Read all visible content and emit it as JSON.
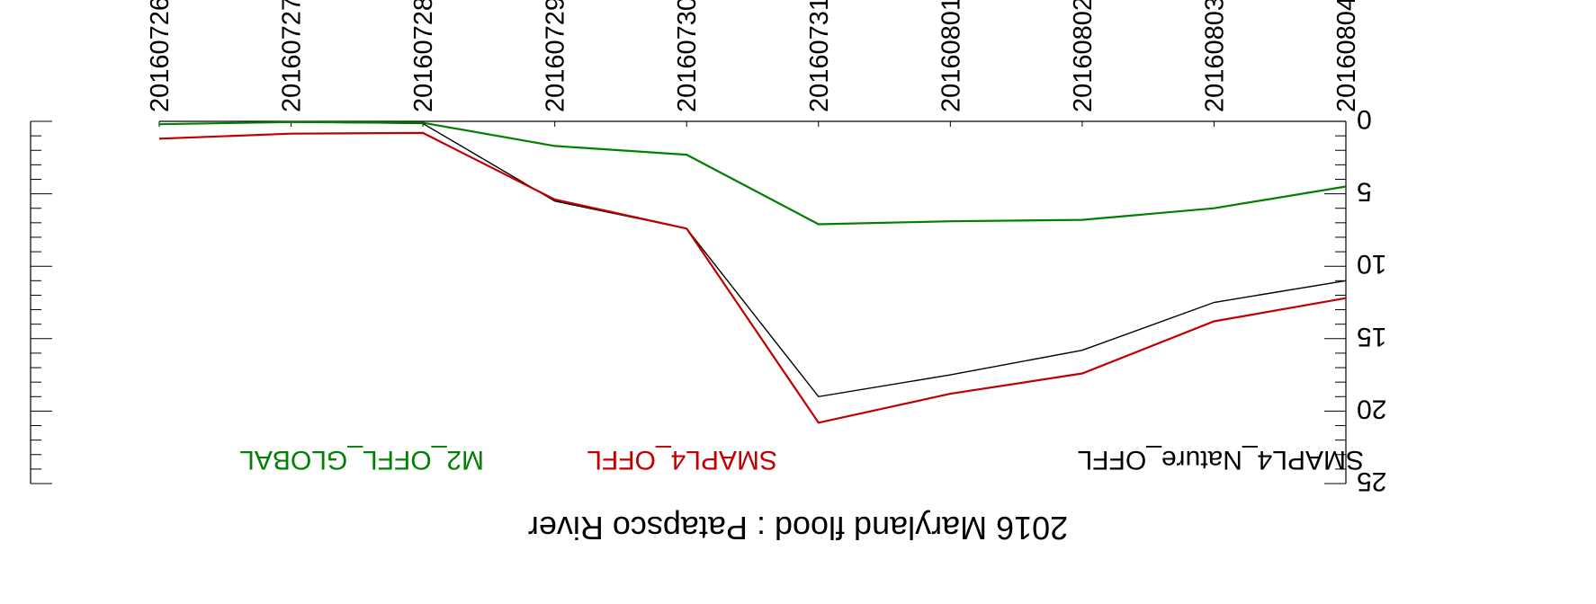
{
  "chart_data": {
    "type": "line",
    "title": "2016 Maryland flood : Patapsco River",
    "xlabel": "",
    "ylabel": "",
    "x": [
      "20160804",
      "20160803",
      "20160802",
      "20160801",
      "20160731",
      "20160730",
      "20160729",
      "20160728",
      "20160727",
      "20160726"
    ],
    "y_ticks": [
      "0",
      "5",
      "10",
      "15",
      "20",
      "25"
    ],
    "ylim": [
      0,
      25
    ],
    "orientation": "rotated 180 degrees (rendered upside down)",
    "grid": false,
    "legend_placement": "bottom",
    "series": [
      {
        "name": "SMAPL4_Nature_OFFL",
        "color": "#000000",
        "values": [
          11.0,
          12.5,
          15.8,
          17.5,
          19.0,
          7.4,
          5.5,
          0.15,
          0.05,
          0.2
        ]
      },
      {
        "name": "SMAPL4_OFFL",
        "color": "#c00000",
        "values": [
          12.2,
          13.8,
          17.4,
          18.8,
          20.8,
          7.4,
          5.4,
          0.8,
          0.85,
          1.2
        ]
      },
      {
        "name": "M2_OFFL_GLOBAL",
        "color": "#008000",
        "values": [
          4.5,
          6.0,
          6.8,
          6.9,
          7.1,
          2.3,
          1.7,
          0.1,
          0.05,
          0.2
        ]
      }
    ]
  }
}
